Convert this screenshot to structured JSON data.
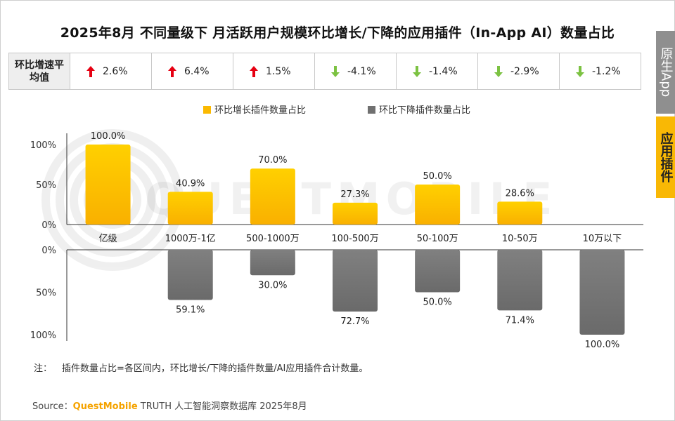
{
  "title": "2025年8月 不同量级下 月活跃用户规模环比增长/下降的应用插件（In-App AI）数量占比",
  "side_tabs": {
    "inactive": "原生App",
    "active": "应用插件"
  },
  "avg_table": {
    "header": "环比增速平均值",
    "values": [
      {
        "text": "2.6%",
        "direction": "up"
      },
      {
        "text": "6.4%",
        "direction": "up"
      },
      {
        "text": "1.5%",
        "direction": "up"
      },
      {
        "text": "-4.1%",
        "direction": "down"
      },
      {
        "text": "-1.4%",
        "direction": "down"
      },
      {
        "text": "-2.9%",
        "direction": "down"
      },
      {
        "text": "-1.2%",
        "direction": "down"
      }
    ],
    "colors": {
      "up": "#e60012",
      "down": "#7cc242"
    }
  },
  "watermark": "QUESTMOBILE",
  "chart_data": {
    "type": "bar",
    "categories": [
      "亿级",
      "1000万-1亿",
      "500-1000万",
      "100-500万",
      "50-100万",
      "10-50万",
      "10万以下"
    ],
    "series": [
      {
        "name": "环比增长插件数量占比",
        "values": [
          100.0,
          40.9,
          70.0,
          27.3,
          50.0,
          28.6,
          0.0
        ],
        "color": "#fbb900"
      },
      {
        "name": "环比下降插件数量占比",
        "values": [
          0.0,
          59.1,
          30.0,
          72.7,
          50.0,
          71.4,
          100.0
        ],
        "color": "#707070"
      }
    ],
    "data_labels": {
      "up": [
        "100.0%",
        "40.9%",
        "70.0%",
        "27.3%",
        "50.0%",
        "28.6%",
        ""
      ],
      "down": [
        "",
        "59.1%",
        "30.0%",
        "72.7%",
        "50.0%",
        "71.4%",
        "100.0%"
      ]
    },
    "y_ticks_up": [
      "100%",
      "50%",
      "0%"
    ],
    "y_ticks_down": [
      "0%",
      "50%",
      "100%"
    ],
    "ylim": [
      0,
      100
    ],
    "legend_position": "top-center"
  },
  "note": {
    "label": "注：",
    "text": "插件数量占比=各区间内，环比增长/下降的插件数量/AI应用插件合计数量。"
  },
  "source": {
    "label": "Source：",
    "brand": "QuestMobile",
    "text": "TRUTH 人工智能洞察数据库 2025年8月"
  }
}
